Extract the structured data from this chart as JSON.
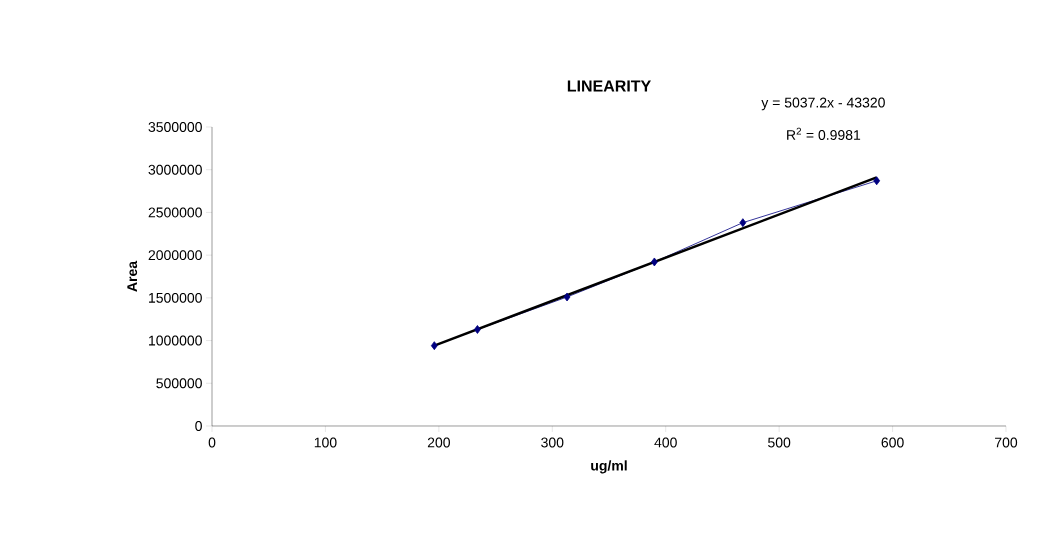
{
  "chart_data": {
    "type": "line",
    "title": "LINEARITY",
    "xlabel": "ug/ml",
    "ylabel": "Area",
    "series": [
      {
        "color": "#000080",
        "marker": "diamond",
        "x": [
          196,
          234,
          313,
          390,
          468,
          586
        ],
        "values": [
          940000,
          1130000,
          1510000,
          1920000,
          2380000,
          2870000
        ]
      },
      {
        "color": "#000000",
        "marker": "none",
        "x": [
          196,
          586
        ],
        "values": [
          940000,
          2910000
        ]
      }
    ],
    "annotations": [
      "y = 5037.2x - 43320",
      "R$^{2}$ = 0.9981"
    ],
    "xlim": [
      0,
      700
    ],
    "xticks": [
      0,
      100,
      200,
      300,
      400,
      500,
      600,
      700
    ],
    "ylim": [
      0,
      3500000
    ],
    "yticks": [
      0,
      500000,
      1000000,
      1500000,
      2000000,
      2500000,
      3000000,
      3500000
    ],
    "grid": false
  }
}
